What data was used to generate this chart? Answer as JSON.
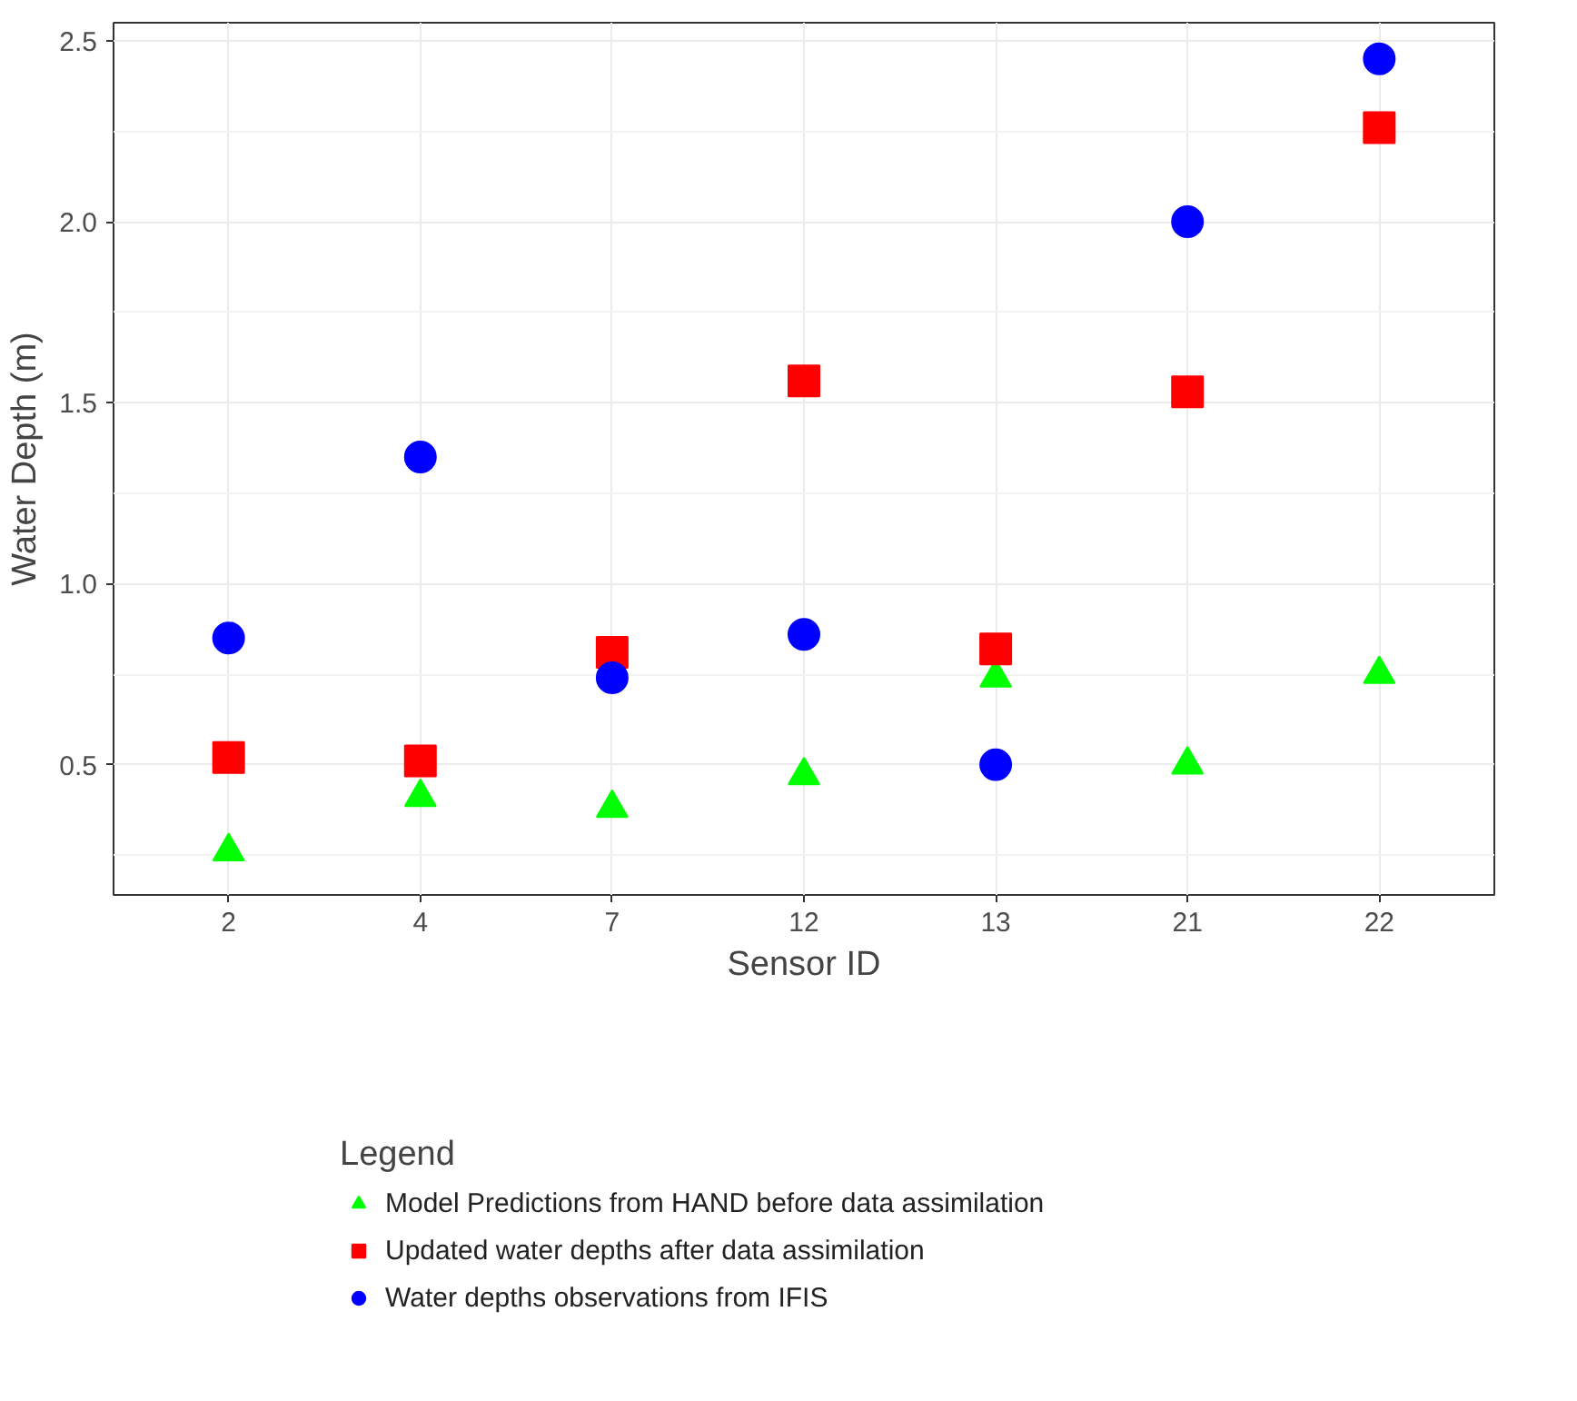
{
  "chart_data": {
    "type": "scatter",
    "xlabel": "Sensor ID",
    "ylabel": "Water Depth (m)",
    "legend_title": "Legend",
    "categories": [
      "2",
      "4",
      "7",
      "12",
      "13",
      "21",
      "22"
    ],
    "series": [
      {
        "name": "Model Predictions from HAND before data assimilation",
        "color": "#00ff00",
        "marker": "triangle",
        "values": [
          0.26,
          0.41,
          0.38,
          0.47,
          0.74,
          0.5,
          0.75
        ]
      },
      {
        "name": "Updated water depths after data assimilation",
        "color": "#ff0000",
        "marker": "square",
        "values": [
          0.52,
          0.51,
          0.81,
          1.56,
          0.82,
          1.53,
          2.26
        ]
      },
      {
        "name": "Water depths observations from IFIS",
        "color": "#0000ff",
        "marker": "circle",
        "values": [
          0.85,
          1.35,
          0.74,
          0.86,
          0.5,
          2.0,
          2.45
        ]
      }
    ],
    "ylim": [
      0.14,
      2.55
    ],
    "yticks": [
      {
        "value": 0.5,
        "label": "0.5"
      },
      {
        "value": 1.0,
        "label": "1.0"
      },
      {
        "value": 1.5,
        "label": "1.5"
      },
      {
        "value": 2.0,
        "label": "2.0"
      },
      {
        "value": 2.5,
        "label": "2.5"
      }
    ],
    "grid": true,
    "legend": "bottom"
  }
}
